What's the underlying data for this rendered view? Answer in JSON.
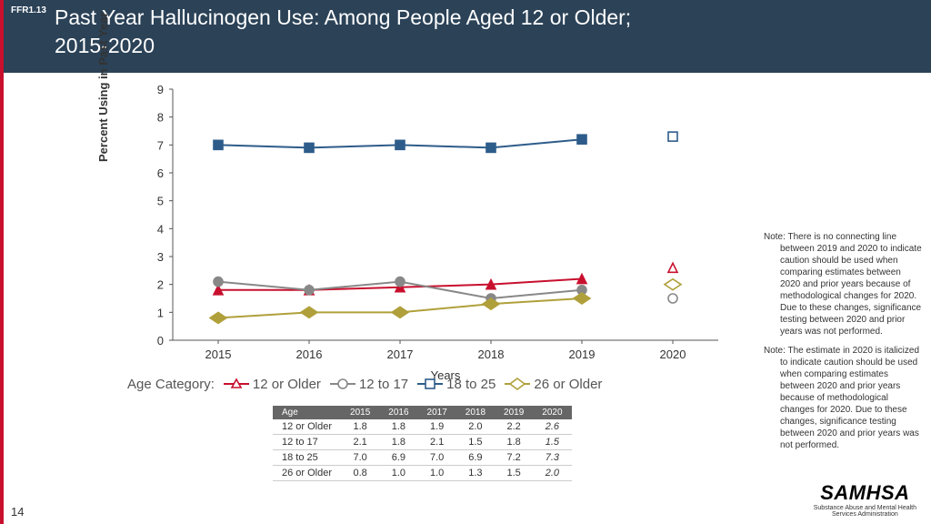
{
  "ffr_tag": "FFR1.13",
  "title_line1": "Past Year Hallucinogen Use: Among People Aged 12 or Older;",
  "title_line2": "2015-2020",
  "page_number": "14",
  "chart": {
    "type": "line",
    "ylabel": "Percent Using in Past Year",
    "xlabel": "Years",
    "ylim": [
      0,
      9
    ],
    "ytick_step": 1,
    "categories": [
      "2015",
      "2016",
      "2017",
      "2018",
      "2019",
      "2020"
    ],
    "series": [
      {
        "name": "12 or Older",
        "color": "#c8102e",
        "marker": "triangle",
        "values": [
          1.8,
          1.8,
          1.9,
          2.0,
          2.2,
          2.6
        ],
        "italic_last": true
      },
      {
        "name": "12 to 17",
        "color": "#888888",
        "marker": "circle",
        "values": [
          2.1,
          1.8,
          2.1,
          1.5,
          1.8,
          1.5
        ],
        "italic_last": true
      },
      {
        "name": "18 to 25",
        "color": "#2e5c8a",
        "marker": "square",
        "values": [
          7.0,
          6.9,
          7.0,
          6.9,
          7.2,
          7.3
        ],
        "italic_last": true
      },
      {
        "name": "26 or Older",
        "color": "#b0a03b",
        "marker": "diamond",
        "values": [
          0.8,
          1.0,
          1.0,
          1.3,
          1.5,
          2.0
        ],
        "italic_last": true
      }
    ],
    "break_before_last": true,
    "grid_color": "#f0f0f0",
    "axis_color": "#555",
    "tick_fontsize": 13
  },
  "legend_label": "Age Category:",
  "table": {
    "header": [
      "Age",
      "2015",
      "2016",
      "2017",
      "2018",
      "2019",
      "2020"
    ]
  },
  "note1": "Note: There is no connecting line between 2019 and 2020 to indicate caution should be used when comparing estimates between 2020 and prior years because of methodological changes for 2020. Due to these changes, significance testing between 2020 and prior years was not performed.",
  "note2": "Note: The estimate in 2020 is italicized to indicate caution should be used when comparing estimates between 2020 and prior years because of methodological changes for 2020. Due to these changes, significance testing between 2020 and prior years was not performed.",
  "logo_name": "SAMHSA",
  "logo_sub1": "Substance Abuse and Mental Health",
  "logo_sub2": "Services Administration"
}
